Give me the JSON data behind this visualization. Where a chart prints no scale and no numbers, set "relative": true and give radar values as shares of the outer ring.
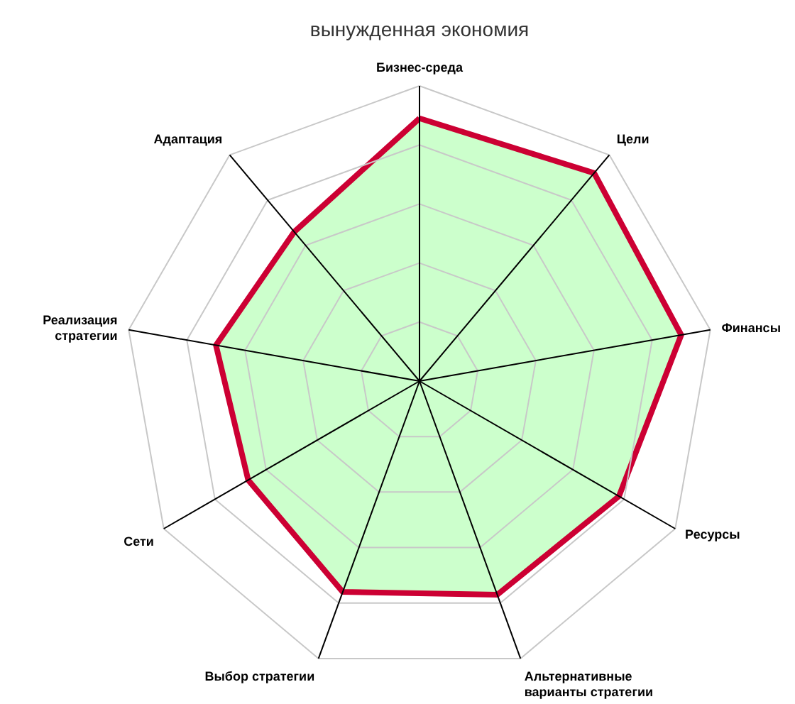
{
  "chart_data": {
    "type": "radar",
    "title": "вынужденная экономия",
    "relative": true,
    "grid": true,
    "marker": "none",
    "line_style": "solid",
    "categories": [
      "Бизнес-среда",
      "Цели",
      "Финансы",
      "Ресурсы",
      "Альтернативные\nварианты стратегии",
      "Выбор стратегии",
      "Сети",
      "Реализация\nстратегии",
      "Адаптация"
    ],
    "series": [
      {
        "color": "#cc0033",
        "values": [
          0.89,
          0.92,
          0.9,
          0.78,
          0.77,
          0.76,
          0.67,
          0.7,
          0.66
        ]
      }
    ]
  }
}
